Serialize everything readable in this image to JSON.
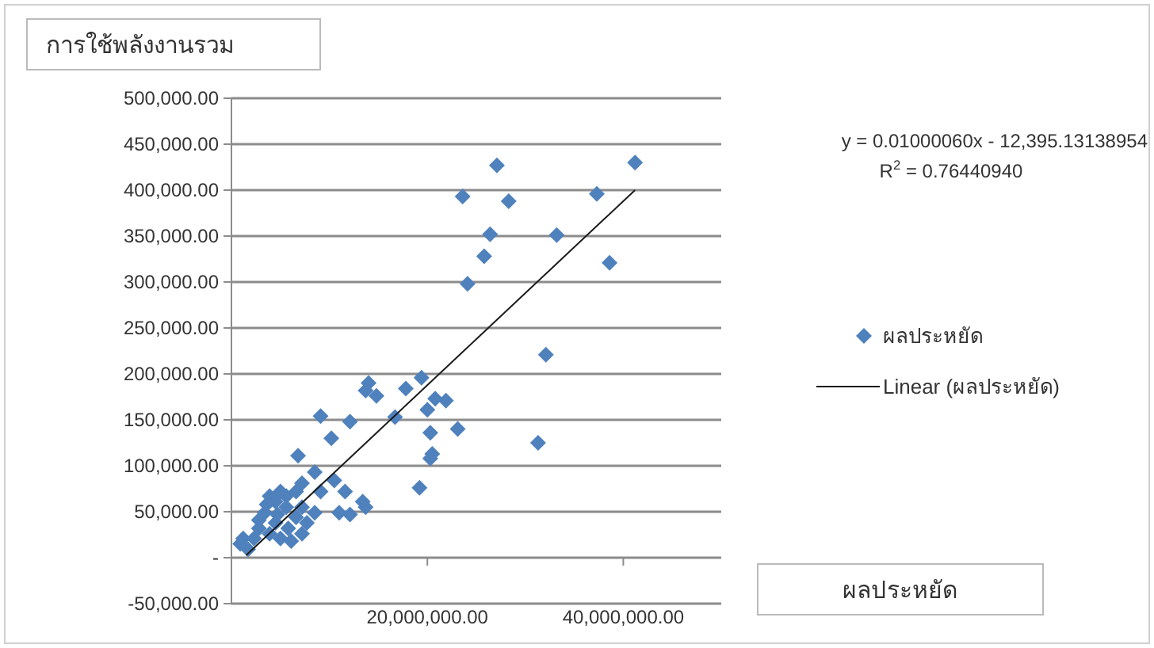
{
  "chart_data": {
    "type": "scatter",
    "ylabel": "การใช้พลังงานรวม",
    "xlim": [
      0,
      50000000
    ],
    "ylim": [
      -50000,
      500000
    ],
    "xticks": [
      {
        "value": 20000000,
        "label": "20,000,000.00"
      },
      {
        "value": 40000000,
        "label": "40,000,000.00"
      }
    ],
    "yticks": [
      {
        "value": -50000,
        "label": "-50,000.00"
      },
      {
        "value": 0,
        "label": "-"
      },
      {
        "value": 50000,
        "label": "50,000.00"
      },
      {
        "value": 100000,
        "label": "100,000.00"
      },
      {
        "value": 150000,
        "label": "150,000.00"
      },
      {
        "value": 200000,
        "label": "200,000.00"
      },
      {
        "value": 250000,
        "label": "250,000.00"
      },
      {
        "value": 300000,
        "label": "300,000.00"
      },
      {
        "value": 350000,
        "label": "350,000.00"
      },
      {
        "value": 400000,
        "label": "400,000.00"
      },
      {
        "value": 450000,
        "label": "450,000.00"
      },
      {
        "value": 500000,
        "label": "500,000.00"
      }
    ],
    "grid": "y",
    "legend": "right",
    "marker": "diamond",
    "annotations": [
      "y = 0.01000060x - 12,395.13138954",
      "R$^{2}$ = 0.76440940",
      "ผลประหยัด"
    ],
    "series": [
      {
        "name": "ผลประหยัด",
        "color": "#4f81bd",
        "x": [
          23600000,
          27100000,
          26400000,
          25800000,
          24100000,
          28300000,
          37300000,
          41200000,
          33200000,
          38600000,
          32100000,
          23100000,
          31300000,
          21900000,
          14000000,
          13700000,
          14800000,
          19400000,
          17800000,
          20800000,
          20000000,
          16700000,
          20300000,
          20500000,
          20300000,
          19200000,
          9100000,
          12100000,
          10200000,
          6800000,
          8500000,
          10500000,
          11600000,
          9100000,
          13400000,
          13700000,
          11000000,
          12100000,
          7200000,
          6600000,
          1200000,
          900000,
          1700000,
          2800000,
          3400000,
          3900000,
          4500000,
          5000000,
          5600000,
          4500000,
          3900000,
          5000000,
          5800000,
          6600000,
          7200000,
          6100000,
          7200000,
          7700000,
          2300000,
          2800000,
          3600000,
          5600000,
          8500000,
          4700000
        ],
        "values": [
          393000,
          427000,
          352000,
          328000,
          298000,
          388000,
          396000,
          430000,
          351000,
          321000,
          221000,
          140000,
          125000,
          171000,
          190000,
          182000,
          176000,
          196000,
          184000,
          173000,
          161000,
          153000,
          136000,
          113000,
          108000,
          76000,
          154000,
          148000,
          130000,
          111000,
          93000,
          84000,
          72000,
          72000,
          61000,
          55000,
          49000,
          47000,
          81000,
          72000,
          21000,
          15000,
          9000,
          32000,
          49000,
          67000,
          61000,
          72000,
          55000,
          38000,
          26000,
          21000,
          32000,
          44000,
          55000,
          18000,
          26000,
          38000,
          21000,
          41000,
          58000,
          67000,
          49000,
          47000
        ]
      },
      {
        "name": "Linear (ผลประหยัด)",
        "type": "line",
        "color": "#1a1a1a",
        "marker": "none",
        "line_style": "solid",
        "x": [
          1500000,
          41200000
        ],
        "values": [
          2600,
          400000
        ]
      }
    ]
  }
}
